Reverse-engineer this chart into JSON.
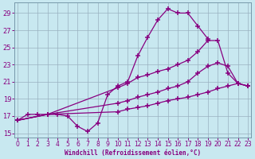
{
  "xlabel": "Windchill (Refroidissement éolien,°C)",
  "xlim": [
    -0.3,
    23.3
  ],
  "ylim": [
    14.5,
    30.2
  ],
  "xticks": [
    0,
    1,
    2,
    3,
    4,
    5,
    6,
    7,
    8,
    9,
    10,
    11,
    12,
    13,
    14,
    15,
    16,
    17,
    18,
    19,
    20,
    21,
    22,
    23
  ],
  "yticks": [
    15,
    17,
    19,
    21,
    23,
    25,
    27,
    29
  ],
  "bg_color": "#c8e8f0",
  "line_color": "#880080",
  "grid_color": "#9ab0c0",
  "line1_x": [
    0,
    1,
    2,
    3,
    4,
    5,
    6,
    7,
    8,
    9,
    10,
    11,
    12,
    13,
    14,
    15,
    16,
    17,
    18,
    19
  ],
  "line1_y": [
    16.5,
    17.2,
    17.2,
    17.2,
    17.2,
    17.0,
    15.8,
    15.2,
    16.2,
    19.5,
    20.5,
    21.0,
    24.0,
    26.2,
    28.2,
    29.5,
    29.0,
    29.0,
    27.5,
    26.0
  ],
  "line2_x": [
    0,
    3,
    10,
    11,
    12,
    13,
    14,
    15,
    16,
    17,
    18,
    19,
    20,
    21,
    22,
    23
  ],
  "line2_y": [
    16.5,
    17.2,
    20.3,
    20.8,
    21.5,
    21.8,
    22.2,
    22.5,
    23.0,
    23.5,
    24.5,
    25.8,
    25.8,
    22.0,
    20.8,
    20.5
  ],
  "line3_x": [
    0,
    3,
    10,
    11,
    12,
    13,
    14,
    15,
    16,
    17,
    18,
    19,
    20,
    21,
    22,
    23
  ],
  "line3_y": [
    16.5,
    17.2,
    18.5,
    18.8,
    19.2,
    19.5,
    19.8,
    20.2,
    20.5,
    21.0,
    22.0,
    22.8,
    23.2,
    22.8,
    20.8,
    20.5
  ],
  "line4_x": [
    0,
    3,
    10,
    11,
    12,
    13,
    14,
    15,
    16,
    17,
    18,
    19,
    20,
    21,
    22,
    23
  ],
  "line4_y": [
    16.5,
    17.2,
    17.5,
    17.8,
    18.0,
    18.2,
    18.5,
    18.8,
    19.0,
    19.2,
    19.5,
    19.8,
    20.2,
    20.5,
    20.8,
    20.5
  ]
}
